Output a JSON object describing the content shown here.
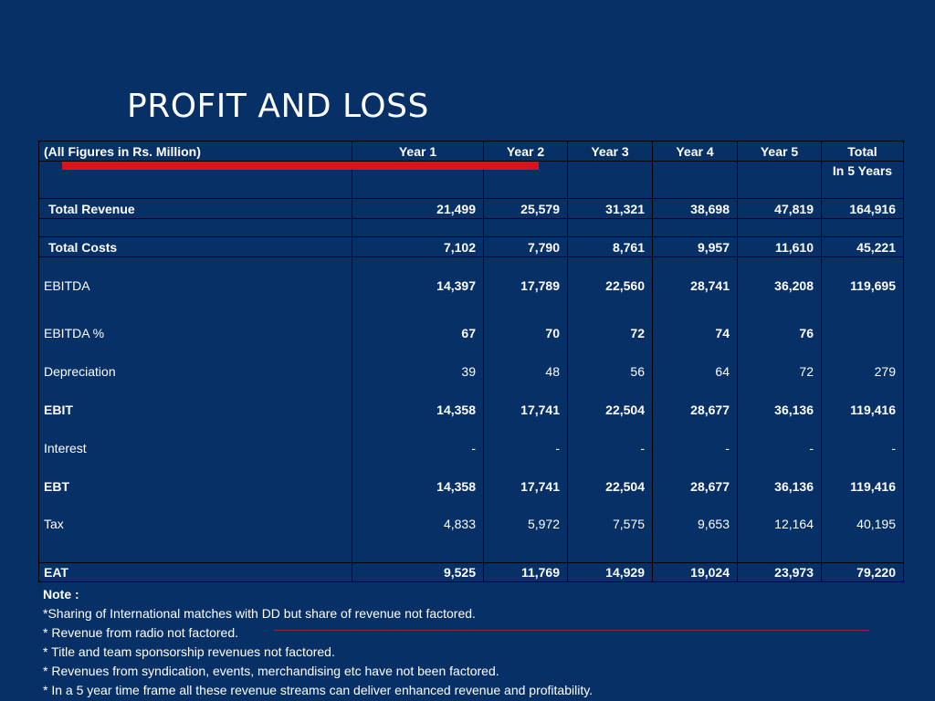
{
  "title": "PROFIT AND LOSS",
  "header": {
    "label": "(All Figures in Rs. Million)",
    "years": [
      "Year 1",
      "Year 2",
      "Year 3",
      "Year 4",
      "Year 5"
    ],
    "total": "Total",
    "total_sub": "In 5 Years"
  },
  "rows": {
    "total_revenue": {
      "label": "Total Revenue",
      "values": [
        "21,499",
        "25,579",
        "31,321",
        "38,698",
        "47,819",
        "164,916"
      ]
    },
    "total_costs": {
      "label": "Total Costs",
      "values": [
        "7,102",
        "7,790",
        "8,761",
        "9,957",
        "11,610",
        "45,221"
      ]
    },
    "ebitda": {
      "label": "EBITDA",
      "values": [
        "14,397",
        "17,789",
        "22,560",
        "28,741",
        "36,208",
        "119,695"
      ]
    },
    "ebitda_pct": {
      "label": "EBITDA %",
      "values": [
        "67",
        "70",
        "72",
        "74",
        "76",
        ""
      ]
    },
    "depreciation": {
      "label": "Depreciation",
      "values": [
        "39",
        "48",
        "56",
        "64",
        "72",
        "279"
      ]
    },
    "ebit": {
      "label": "EBIT",
      "values": [
        "14,358",
        "17,741",
        "22,504",
        "28,677",
        "36,136",
        "119,416"
      ]
    },
    "interest": {
      "label": "Interest",
      "values": [
        "-",
        "-",
        "-",
        "-",
        "-",
        "-"
      ]
    },
    "ebt": {
      "label": "EBT",
      "values": [
        "14,358",
        "17,741",
        "22,504",
        "28,677",
        "36,136",
        "119,416"
      ]
    },
    "tax": {
      "label": "Tax",
      "values": [
        "4,833",
        "5,972",
        "7,575",
        "9,653",
        "12,164",
        "40,195"
      ]
    },
    "eat": {
      "label": "EAT",
      "values": [
        "9,525",
        "11,769",
        "14,929",
        "19,024",
        "23,973",
        "79,220"
      ]
    }
  },
  "notes": {
    "title": "Note :",
    "lines": [
      "*Sharing of International matches with DD but share of revenue not factored.",
      "* Revenue from radio not factored.",
      "* Title and team sponsorship revenues not factored.",
      "* Revenues from syndication, events, merchandising etc have not been factored.",
      "* In a 5 year time frame all these revenue streams can deliver enhanced revenue and profitability."
    ]
  },
  "colors": {
    "background": "#073066",
    "accent_red": "#d6141a",
    "text": "#ffffff"
  }
}
